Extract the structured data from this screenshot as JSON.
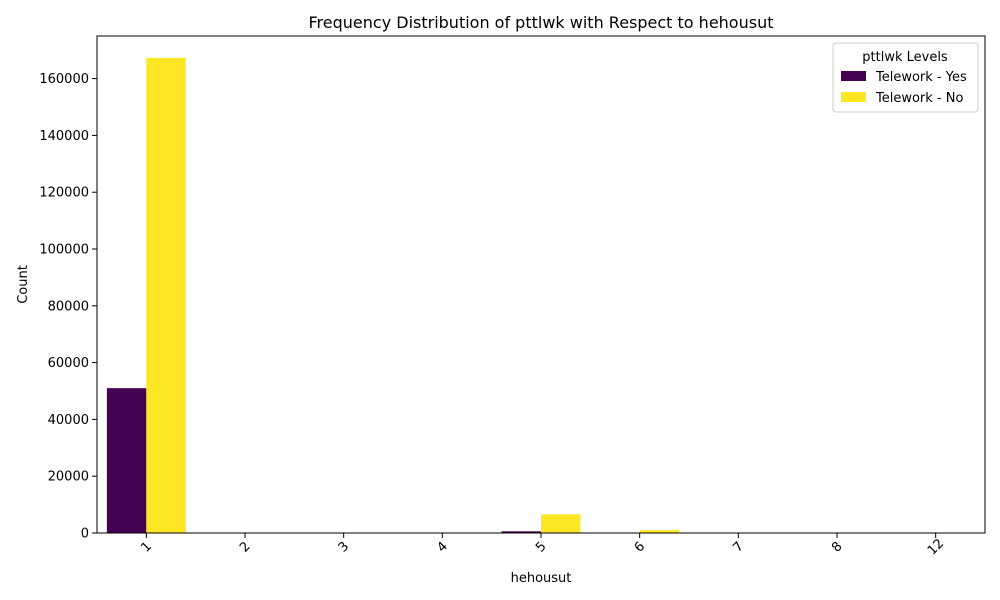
{
  "chart_data": {
    "type": "bar",
    "title": "Frequency Distribution of pttlwk with Respect to hehousut",
    "xlabel": "hehousut",
    "ylabel": "Count",
    "categories": [
      "1",
      "2",
      "3",
      "4",
      "5",
      "6",
      "7",
      "8",
      "12"
    ],
    "series": [
      {
        "name": "Telework - Yes",
        "color": "#440154",
        "values": [
          51000,
          30,
          10,
          20,
          600,
          100,
          10,
          5,
          5
        ]
      },
      {
        "name": "Telework - No",
        "color": "#fde725",
        "values": [
          167300,
          100,
          50,
          80,
          6600,
          1000,
          50,
          30,
          20
        ]
      }
    ],
    "ylim": [
      0,
      175000
    ],
    "yticks": [
      0,
      20000,
      40000,
      60000,
      80000,
      100000,
      120000,
      140000,
      160000
    ],
    "grid": false,
    "legend": {
      "title": "pttlwk Levels",
      "position": "top-right"
    }
  }
}
